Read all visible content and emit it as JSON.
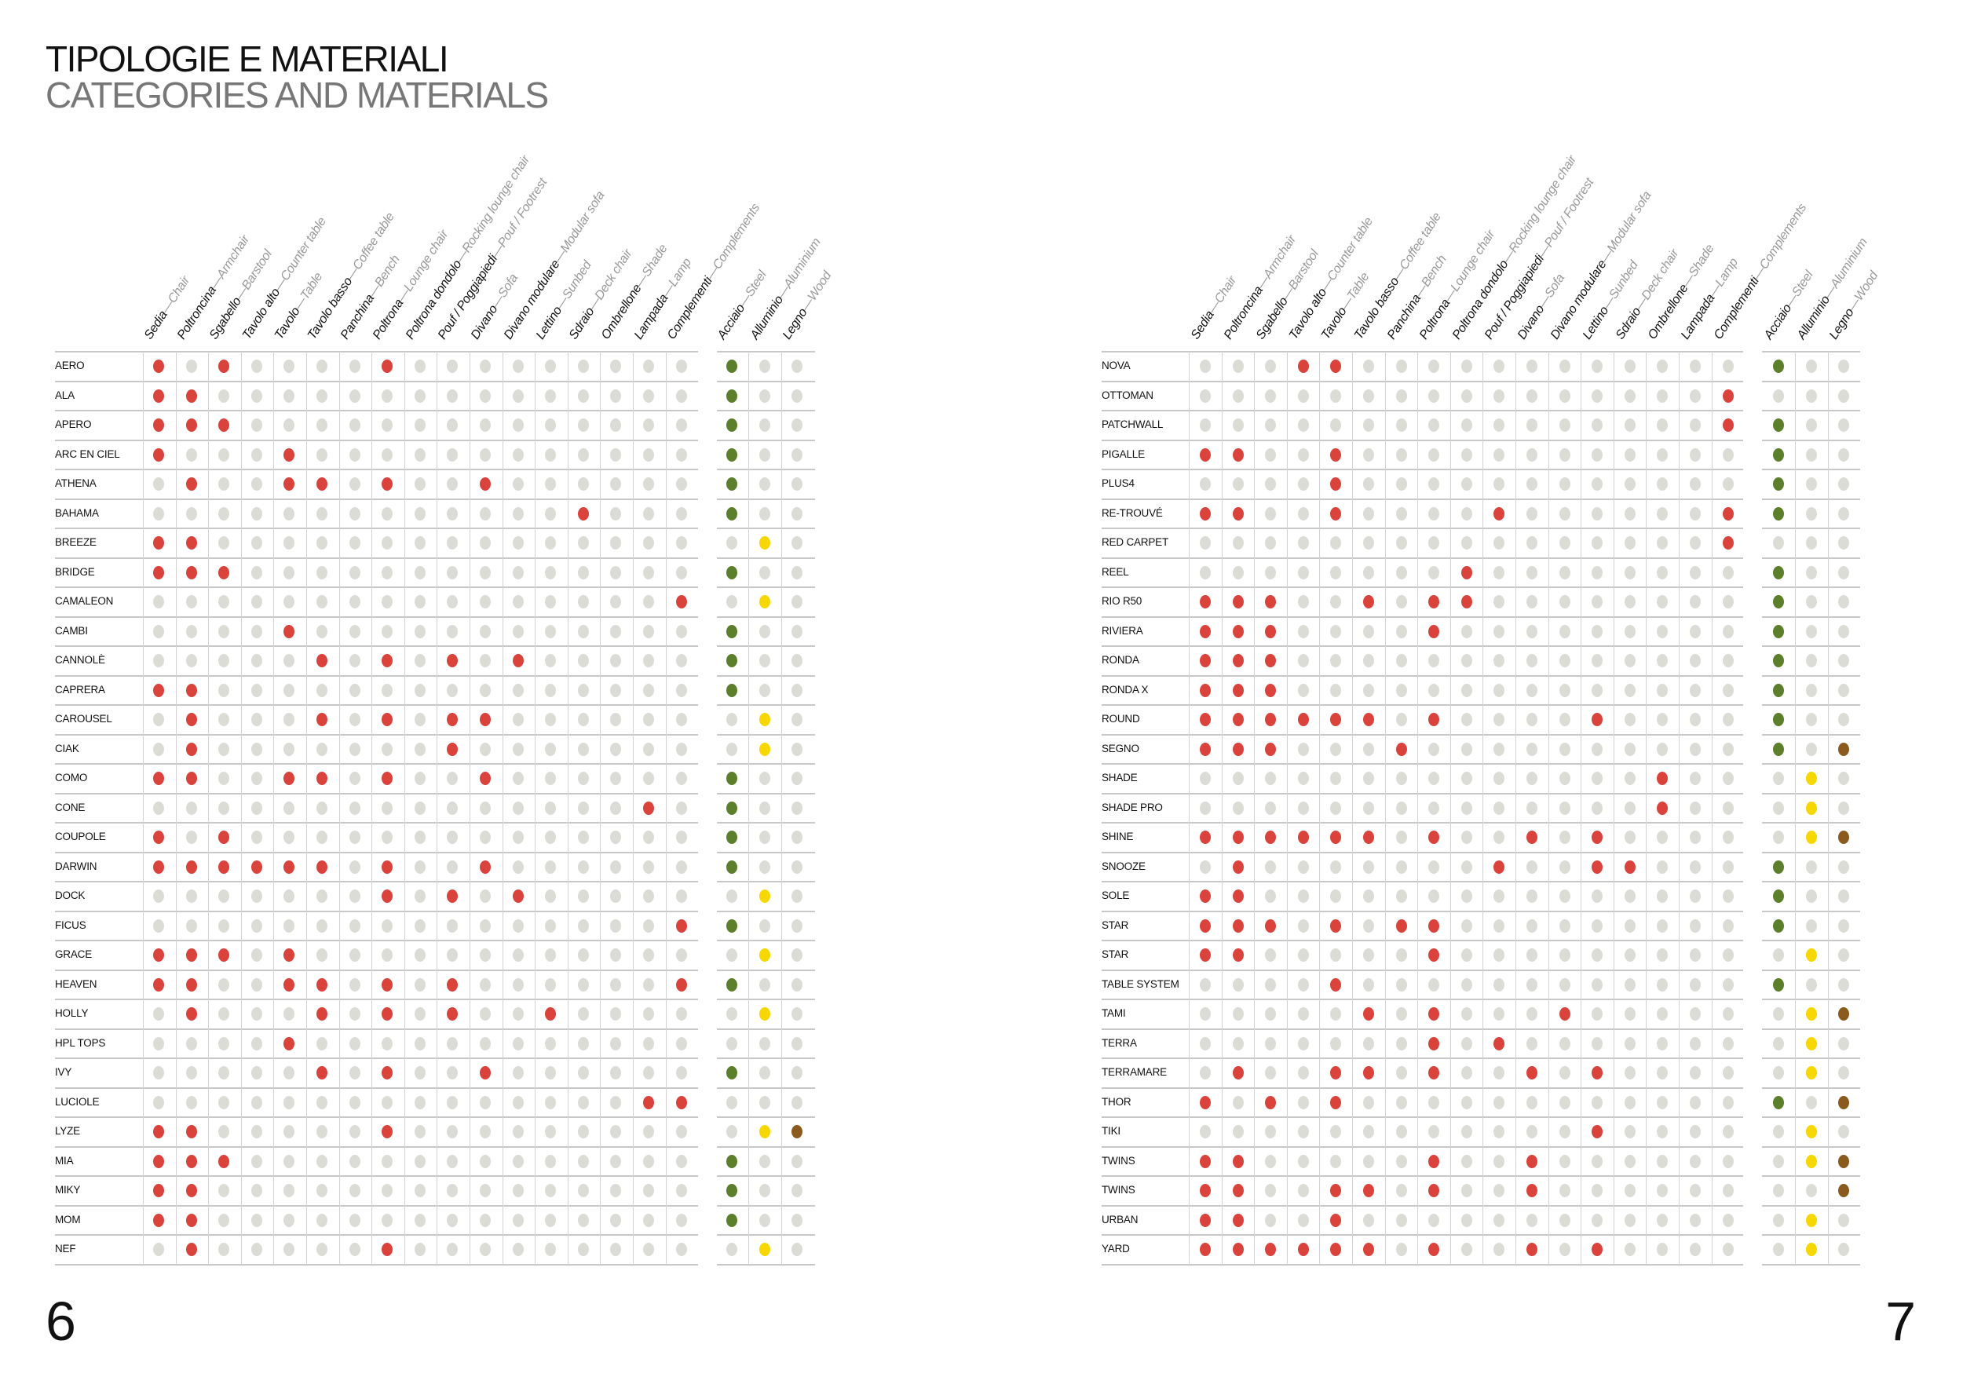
{
  "header": {
    "title_it": "TIPOLOGIE E MATERIALI",
    "title_en": "CATEGORIES AND MATERIALS"
  },
  "colors": {
    "typology": "#d9433b",
    "empty": "#dcdcd7",
    "steel": "#5b7f2b",
    "aluminium": "#f6d700",
    "wood": "#8b5a1d",
    "grid": "#cfcfcf"
  },
  "columns": {
    "typologies": [
      {
        "it": "Sedia",
        "en": "Chair"
      },
      {
        "it": "Poltroncina",
        "en": "Armchair"
      },
      {
        "it": "Sgabello",
        "en": "Barstool"
      },
      {
        "it": "Tavolo alto",
        "en": "Counter table"
      },
      {
        "it": "Tavolo",
        "en": "Table"
      },
      {
        "it": "Tavolo basso",
        "en": "Coffee table"
      },
      {
        "it": "Panchina",
        "en": "Bench"
      },
      {
        "it": "Poltrona",
        "en": "Lounge chair"
      },
      {
        "it": "Poltrona dondolo",
        "en": "Rocking lounge chair"
      },
      {
        "it": "Pouf / Poggiapiedi",
        "en": "Pouf / Footrest"
      },
      {
        "it": "Divano",
        "en": "Sofa"
      },
      {
        "it": "Divano modulare",
        "en": "Modular sofa"
      },
      {
        "it": "Lettino",
        "en": "Sunbed"
      },
      {
        "it": "Sdraio",
        "en": "Deck chair"
      },
      {
        "it": "Ombrellone",
        "en": "Shade"
      },
      {
        "it": "Lampada",
        "en": "Lamp"
      },
      {
        "it": "Complementi",
        "en": "Complements"
      }
    ],
    "materials": [
      {
        "it": "Acciaio",
        "en": "Steel"
      },
      {
        "it": "Alluminio",
        "en": "Aluminium"
      },
      {
        "it": "Legno",
        "en": "Wood"
      }
    ],
    "separator": "—"
  },
  "pages": [
    {
      "number": "6",
      "rows": [
        {
          "name": "AERO",
          "typologies": [
            0,
            2,
            7
          ],
          "materials": [
            0
          ]
        },
        {
          "name": "ALA",
          "typologies": [
            0,
            1
          ],
          "materials": [
            0
          ]
        },
        {
          "name": "APERO",
          "typologies": [
            0,
            1,
            2
          ],
          "materials": [
            0
          ]
        },
        {
          "name": "ARC EN CIEL",
          "typologies": [
            0,
            4
          ],
          "materials": [
            0
          ]
        },
        {
          "name": "ATHENA",
          "typologies": [
            1,
            4,
            5,
            7,
            10
          ],
          "materials": [
            0
          ]
        },
        {
          "name": "BAHAMA",
          "typologies": [
            13
          ],
          "materials": [
            0
          ]
        },
        {
          "name": "BREEZE",
          "typologies": [
            0,
            1
          ],
          "materials": [
            1
          ]
        },
        {
          "name": "BRIDGE",
          "typologies": [
            0,
            1,
            2
          ],
          "materials": [
            0
          ]
        },
        {
          "name": "CAMALEON",
          "typologies": [
            16
          ],
          "materials": [
            1
          ]
        },
        {
          "name": "CAMBI",
          "typologies": [
            4
          ],
          "materials": [
            0
          ]
        },
        {
          "name": "CANNOLÈ",
          "typologies": [
            5,
            7,
            9,
            11
          ],
          "materials": [
            0
          ]
        },
        {
          "name": "CAPRERA",
          "typologies": [
            0,
            1
          ],
          "materials": [
            0
          ]
        },
        {
          "name": "CAROUSEL",
          "typologies": [
            1,
            5,
            7,
            9,
            10
          ],
          "materials": [
            1
          ]
        },
        {
          "name": "CIAK",
          "typologies": [
            1,
            9
          ],
          "materials": [
            1
          ]
        },
        {
          "name": "COMO",
          "typologies": [
            0,
            1,
            4,
            5,
            7,
            10
          ],
          "materials": [
            0
          ]
        },
        {
          "name": "CONE",
          "typologies": [
            15
          ],
          "materials": [
            0
          ]
        },
        {
          "name": "COUPOLE",
          "typologies": [
            0,
            2
          ],
          "materials": [
            0
          ]
        },
        {
          "name": "DARWIN",
          "typologies": [
            0,
            1,
            2,
            3,
            4,
            5,
            7,
            10
          ],
          "materials": [
            0
          ]
        },
        {
          "name": "DOCK",
          "typologies": [
            7,
            9,
            11
          ],
          "materials": [
            1
          ]
        },
        {
          "name": "FICUS",
          "typologies": [
            16
          ],
          "materials": [
            0
          ]
        },
        {
          "name": "GRACE",
          "typologies": [
            0,
            1,
            2,
            4
          ],
          "materials": [
            1
          ]
        },
        {
          "name": "HEAVEN",
          "typologies": [
            0,
            1,
            4,
            5,
            7,
            9,
            16
          ],
          "materials": [
            0
          ]
        },
        {
          "name": "HOLLY",
          "typologies": [
            1,
            5,
            7,
            9,
            12
          ],
          "materials": [
            1
          ]
        },
        {
          "name": "HPL TOPS",
          "typologies": [
            4
          ],
          "materials": []
        },
        {
          "name": "IVY",
          "typologies": [
            5,
            7,
            10
          ],
          "materials": [
            0
          ]
        },
        {
          "name": "LUCIOLE",
          "typologies": [
            15,
            16
          ],
          "materials": []
        },
        {
          "name": "LYZE",
          "typologies": [
            0,
            1,
            7
          ],
          "materials": [
            1,
            2
          ]
        },
        {
          "name": "MIA",
          "typologies": [
            0,
            1,
            2
          ],
          "materials": [
            0
          ]
        },
        {
          "name": "MIKY",
          "typologies": [
            0,
            1
          ],
          "materials": [
            0
          ]
        },
        {
          "name": "MOM",
          "typologies": [
            0,
            1
          ],
          "materials": [
            0
          ]
        },
        {
          "name": "NEF",
          "typologies": [
            1,
            7
          ],
          "materials": [
            1
          ]
        }
      ]
    },
    {
      "number": "7",
      "rows": [
        {
          "name": "NOVA",
          "typologies": [
            3,
            4
          ],
          "materials": [
            0
          ]
        },
        {
          "name": "OTTOMAN",
          "typologies": [
            16
          ],
          "materials": []
        },
        {
          "name": "PATCHWALL",
          "typologies": [
            16
          ],
          "materials": [
            0
          ]
        },
        {
          "name": "PIGALLE",
          "typologies": [
            0,
            1,
            4
          ],
          "materials": [
            0
          ]
        },
        {
          "name": "PLUS4",
          "typologies": [
            4
          ],
          "materials": [
            0
          ]
        },
        {
          "name": "RE-TROUVÉ",
          "typologies": [
            0,
            1,
            4,
            9,
            16
          ],
          "materials": [
            0
          ]
        },
        {
          "name": "RED CARPET",
          "typologies": [
            16
          ],
          "materials": []
        },
        {
          "name": "REEL",
          "typologies": [
            8
          ],
          "materials": [
            0
          ]
        },
        {
          "name": "RIO R50",
          "typologies": [
            0,
            1,
            2,
            5,
            7,
            8
          ],
          "materials": [
            0
          ]
        },
        {
          "name": "RIVIERA",
          "typologies": [
            0,
            1,
            2,
            7
          ],
          "materials": [
            0
          ]
        },
        {
          "name": "RONDA",
          "typologies": [
            0,
            1,
            2
          ],
          "materials": [
            0
          ]
        },
        {
          "name": "RONDA X",
          "typologies": [
            0,
            1,
            2
          ],
          "materials": [
            0
          ]
        },
        {
          "name": "ROUND",
          "typologies": [
            0,
            1,
            2,
            3,
            4,
            5,
            7,
            12
          ],
          "materials": [
            0
          ]
        },
        {
          "name": "SEGNO",
          "typologies": [
            0,
            1,
            2,
            6
          ],
          "materials": [
            0,
            2
          ]
        },
        {
          "name": "SHADE",
          "typologies": [
            14
          ],
          "materials": [
            1
          ]
        },
        {
          "name": "SHADE PRO",
          "typologies": [
            14
          ],
          "materials": [
            1
          ]
        },
        {
          "name": "SHINE",
          "typologies": [
            0,
            1,
            2,
            3,
            4,
            5,
            7,
            10,
            12
          ],
          "materials": [
            1,
            2
          ]
        },
        {
          "name": "SNOOZE",
          "typologies": [
            1,
            9,
            12,
            13
          ],
          "materials": [
            0
          ]
        },
        {
          "name": "SOLE",
          "typologies": [
            0,
            1
          ],
          "materials": [
            0
          ]
        },
        {
          "name": "STAR",
          "typologies": [
            0,
            1,
            2,
            4,
            6,
            7
          ],
          "materials": [
            0
          ]
        },
        {
          "name": "STAR",
          "typologies": [
            0,
            1,
            7
          ],
          "materials": [
            1
          ]
        },
        {
          "name": "TABLE SYSTEM",
          "typologies": [
            4
          ],
          "materials": [
            0
          ]
        },
        {
          "name": "TAMI",
          "typologies": [
            5,
            7,
            11
          ],
          "materials": [
            1,
            2
          ]
        },
        {
          "name": "TERRA",
          "typologies": [
            7,
            9
          ],
          "materials": [
            1
          ]
        },
        {
          "name": "TERRAMARE",
          "typologies": [
            1,
            4,
            5,
            7,
            10,
            12
          ],
          "materials": [
            1
          ]
        },
        {
          "name": "THOR",
          "typologies": [
            0,
            2,
            4
          ],
          "materials": [
            0,
            2
          ]
        },
        {
          "name": "TIKI",
          "typologies": [
            12
          ],
          "materials": [
            1
          ]
        },
        {
          "name": "TWINS",
          "typologies": [
            0,
            1,
            7,
            10
          ],
          "materials": [
            1,
            2
          ]
        },
        {
          "name": "TWINS",
          "typologies": [
            0,
            1,
            4,
            5,
            7,
            10
          ],
          "materials": [
            2
          ]
        },
        {
          "name": "URBAN",
          "typologies": [
            0,
            1,
            4
          ],
          "materials": [
            1
          ]
        },
        {
          "name": "YARD",
          "typologies": [
            0,
            1,
            2,
            3,
            4,
            5,
            7,
            10,
            12
          ],
          "materials": [
            1
          ]
        }
      ]
    }
  ]
}
